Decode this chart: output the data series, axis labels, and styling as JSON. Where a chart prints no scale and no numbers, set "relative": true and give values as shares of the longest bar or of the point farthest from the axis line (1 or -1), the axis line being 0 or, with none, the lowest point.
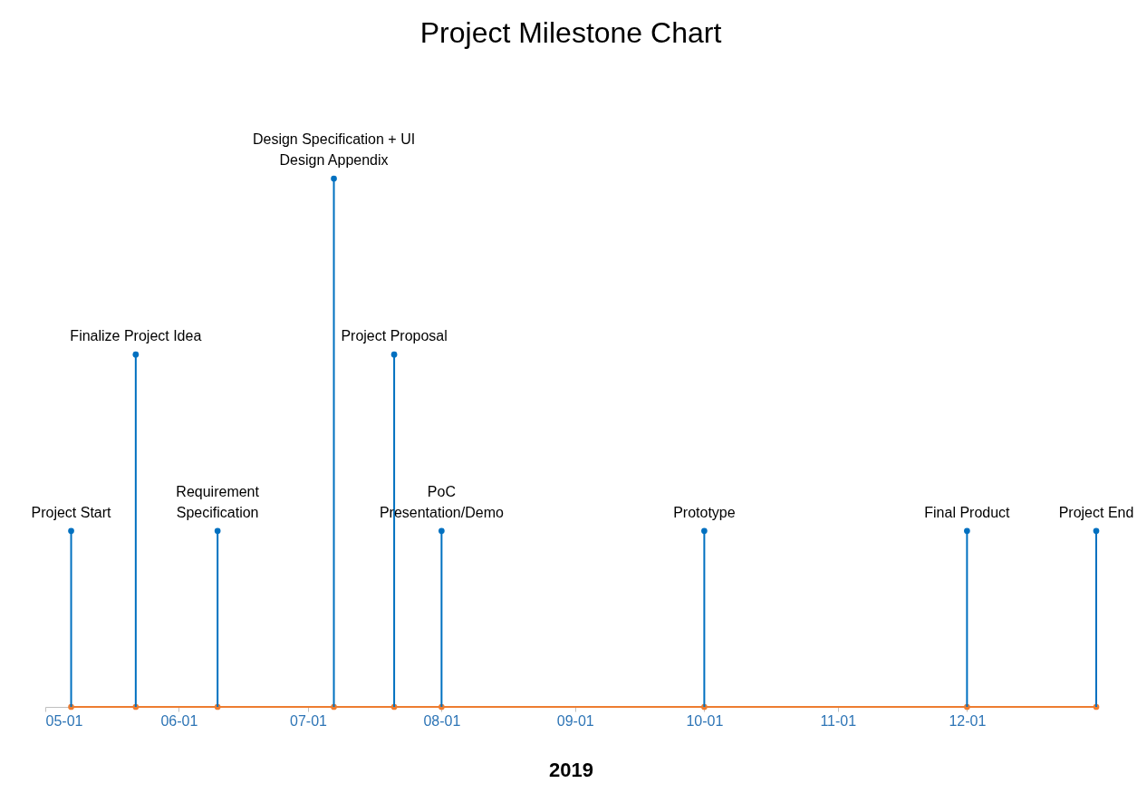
{
  "chart_data": {
    "type": "lollipop",
    "title": "Project Milestone Chart",
    "xlabel": "2019",
    "relative": true,
    "x": [
      "2019-05-07",
      "2019-05-22",
      "2019-06-10",
      "2019-07-07",
      "2019-07-21",
      "2019-08-01",
      "2019-10-01",
      "2019-12-01",
      "2019-12-31"
    ],
    "xlim": [
      "2019-05-01",
      "2019-12-31"
    ],
    "xticks": [
      {
        "value": "2019-05-01",
        "label": "05-01"
      },
      {
        "value": "2019-06-01",
        "label": "06-01"
      },
      {
        "value": "2019-07-01",
        "label": "07-01"
      },
      {
        "value": "2019-08-01",
        "label": "08-01"
      },
      {
        "value": "2019-09-01",
        "label": "09-01"
      },
      {
        "value": "2019-10-01",
        "label": "10-01"
      },
      {
        "value": "2019-11-01",
        "label": "11-01"
      },
      {
        "value": "2019-12-01",
        "label": "12-01"
      }
    ],
    "marker": "circle",
    "series": [
      {
        "type": "line",
        "color": "#ed7d31",
        "values": [
          0,
          0,
          0,
          0,
          0,
          0,
          0,
          0,
          0
        ]
      },
      {
        "color": "#0070c0",
        "values": [
          0.333,
          0.667,
          0.333,
          1,
          0.667,
          0.333,
          0.333,
          0.333,
          0.333
        ]
      }
    ],
    "annotations": [
      {
        "text": "Project Start",
        "x": "2019-05-07",
        "y": 0.333
      },
      {
        "text": "Finalize Project Idea",
        "x": "2019-05-22",
        "y": 0.667
      },
      {
        "text": "Requirement\nSpecification",
        "x": "2019-06-10",
        "y": 0.333
      },
      {
        "text": "Design Specification + UI\nDesign Appendix",
        "x": "2019-07-07",
        "y": 1
      },
      {
        "text": "Project Proposal",
        "x": "2019-07-21",
        "y": 0.667
      },
      {
        "text": "PoC\nPresentation/Demo",
        "x": "2019-08-01",
        "y": 0.333
      },
      {
        "text": "Prototype",
        "x": "2019-10-01",
        "y": 0.333
      },
      {
        "text": "Final Product",
        "x": "2019-12-01",
        "y": 0.333
      },
      {
        "text": "Project End",
        "x": "2019-12-31",
        "y": 0.333
      }
    ]
  }
}
